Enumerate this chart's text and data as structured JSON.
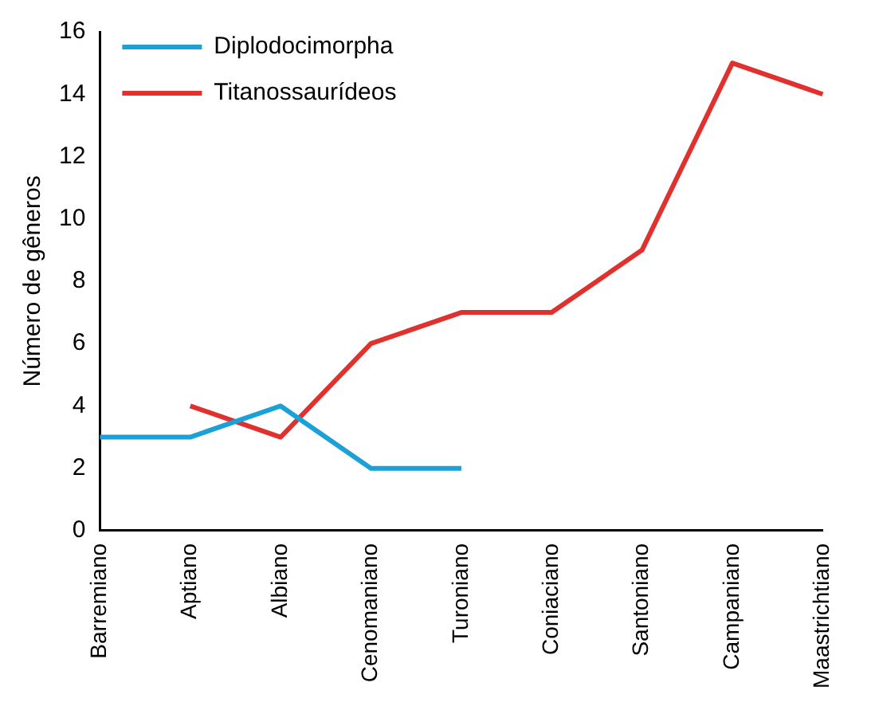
{
  "chart_data": {
    "type": "line",
    "ylabel": "Número de gêneros",
    "categories": [
      "Barremiano",
      "Aptiano",
      "Albiano",
      "Cenomaniano",
      "Turoniano",
      "Coniaciano",
      "Santoniano",
      "Campaniano",
      "Maastrichtiano"
    ],
    "series": [
      {
        "name": "Diplodocimorpha",
        "color": "#1ba1d8",
        "values": [
          3,
          3,
          4,
          2,
          2,
          null,
          null,
          null,
          null
        ]
      },
      {
        "name": "Titanossaurídeos",
        "color": "#e0312f",
        "values": [
          null,
          4,
          3,
          6,
          7,
          7,
          9,
          15,
          14
        ]
      }
    ],
    "ylim": [
      0,
      16
    ],
    "yticks": [
      0,
      2,
      4,
      6,
      8,
      10,
      12,
      14,
      16
    ],
    "grid": false,
    "legend": "top left",
    "marker": "none",
    "line_style": "solid"
  }
}
